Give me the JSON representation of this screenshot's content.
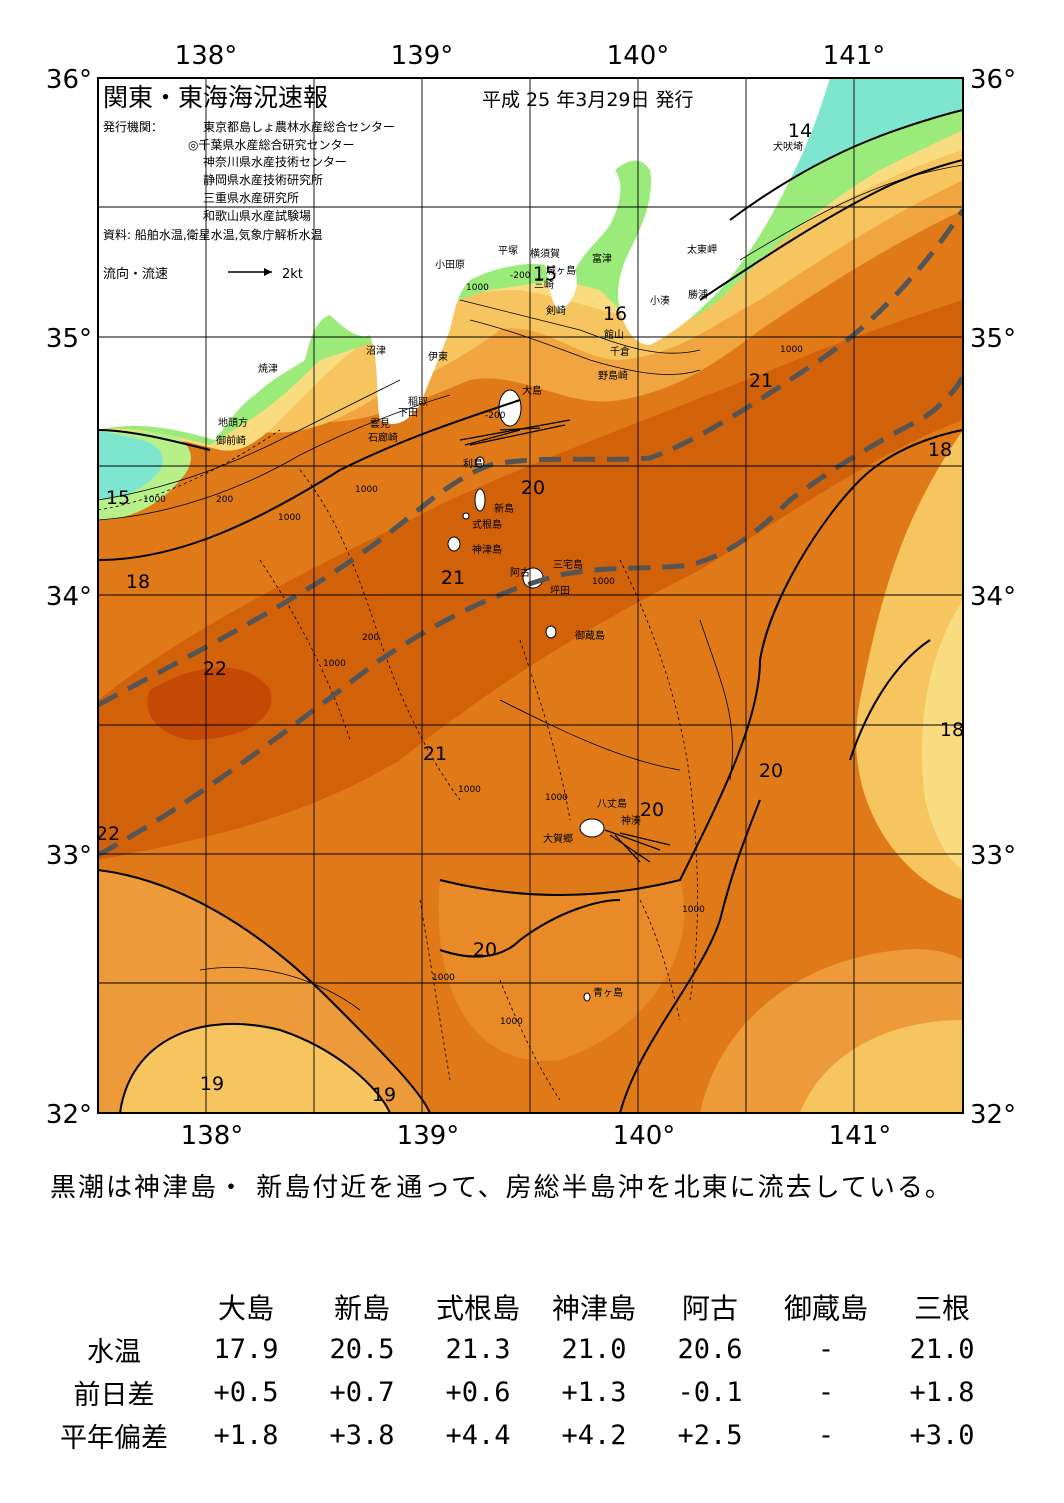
{
  "header": {
    "title": "関東・東海海況速報",
    "issue_date": "平成 25 年3月29日 発行",
    "publisher_label": "発行機関：",
    "publishers": [
      "東京都島しょ農林水産総合センター",
      "◎千葉県水産総合研究センター",
      "神奈川県水産技術センター",
      "静岡県水産技術研究所",
      "三重県水産研究所",
      "和歌山県水産試験場"
    ],
    "source": "資料: 船舶水温,衛星水温,気象庁解析水温",
    "legend_label": "流向・流速",
    "legend_speed": "2kt"
  },
  "axes": {
    "lon_labels": [
      "138°",
      "139°",
      "140°",
      "141°"
    ],
    "lat_labels": [
      "36°",
      "35°",
      "34°",
      "33°",
      "32°"
    ]
  },
  "map": {
    "colors": {
      "sea_warm": "#e07a18",
      "sea_core": "#c84c05",
      "sea_mid": "#ed9a3a",
      "sea_cool": "#f6c560",
      "sea_pale": "#f9dc7f",
      "coast_green": "#9aeb7a",
      "coast_cyan": "#7ee6cf",
      "land": "#ffffff",
      "kuroshio_axis": "#555555"
    },
    "places": [
      {
        "name": "犬吠埼"
      },
      {
        "name": "太東岬"
      },
      {
        "name": "勝浦"
      },
      {
        "name": "小湊"
      },
      {
        "name": "富津"
      },
      {
        "name": "館山"
      },
      {
        "name": "千倉"
      },
      {
        "name": "野島崎"
      },
      {
        "name": "横須賀"
      },
      {
        "name": "城ヶ島"
      },
      {
        "name": "三崎"
      },
      {
        "name": "剣崎"
      },
      {
        "name": "平塚"
      },
      {
        "name": "小田原"
      },
      {
        "name": "沼津"
      },
      {
        "name": "伊東"
      },
      {
        "name": "稲取"
      },
      {
        "name": "下田"
      },
      {
        "name": "雲見"
      },
      {
        "name": "石廊崎"
      },
      {
        "name": "焼津"
      },
      {
        "name": "地頭方"
      },
      {
        "name": "御前崎"
      },
      {
        "name": "大島"
      },
      {
        "name": "利島"
      },
      {
        "name": "新島"
      },
      {
        "name": "式根島"
      },
      {
        "name": "神津島"
      },
      {
        "name": "三宅島"
      },
      {
        "name": "阿古"
      },
      {
        "name": "坪田"
      },
      {
        "name": "御蔵島"
      },
      {
        "name": "八丈島"
      },
      {
        "name": "神湊"
      },
      {
        "name": "大賀郷"
      },
      {
        "name": "青ヶ島"
      }
    ],
    "temperature_labels": [
      {
        "text": "14"
      },
      {
        "text": "15"
      },
      {
        "text": "16"
      },
      {
        "text": "15"
      },
      {
        "text": "18"
      },
      {
        "text": "18"
      },
      {
        "text": "18"
      },
      {
        "text": "19"
      },
      {
        "text": "19"
      },
      {
        "text": "20"
      },
      {
        "text": "20"
      },
      {
        "text": "20"
      },
      {
        "text": "20"
      },
      {
        "text": "21"
      },
      {
        "text": "21"
      },
      {
        "text": "21"
      },
      {
        "text": "22"
      },
      {
        "text": "22"
      }
    ],
    "depth_labels": [
      {
        "text": "-200"
      },
      {
        "text": "1000"
      },
      {
        "text": "1000"
      },
      {
        "text": "-200"
      },
      {
        "text": "1000"
      },
      {
        "text": "200"
      },
      {
        "text": "1000"
      },
      {
        "text": "1000"
      },
      {
        "text": "1000"
      },
      {
        "text": "200"
      },
      {
        "text": "1000"
      },
      {
        "text": "1000"
      },
      {
        "text": "1000"
      },
      {
        "text": "1000"
      },
      {
        "text": "1000"
      },
      {
        "text": "1000"
      }
    ]
  },
  "summary": "黒潮は神津島・ 新島付近を通って、房総半島沖を北東に流去している。",
  "observations": {
    "stations": [
      "大島",
      "新島",
      "式根島",
      "神津島",
      "阿古",
      "御蔵島",
      "三根"
    ],
    "rows": [
      {
        "label": "水温",
        "values": [
          "17.9",
          "20.5",
          "21.3",
          "21.0",
          "20.6",
          "-",
          "21.0"
        ]
      },
      {
        "label": "前日差",
        "values": [
          "+0.5",
          "+0.7",
          "+0.6",
          "+1.3",
          "-0.1",
          "-",
          "+1.8"
        ]
      },
      {
        "label": "平年偏差",
        "values": [
          "+1.8",
          "+3.8",
          "+4.4",
          "+4.2",
          "+2.5",
          "-",
          "+3.0"
        ]
      }
    ]
  }
}
